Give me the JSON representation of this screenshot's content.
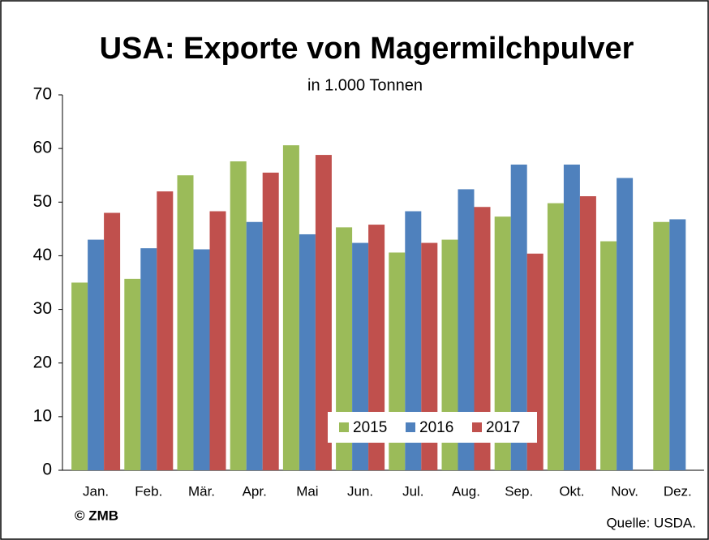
{
  "chart_data": {
    "type": "bar",
    "title": "USA: Exporte von Magermilchpulver",
    "subtitle": "in 1.000 Tonnen",
    "categories": [
      "Jan.",
      "Feb.",
      "Mär.",
      "Apr.",
      "Mai",
      "Jun.",
      "Jul.",
      "Aug.",
      "Sep.",
      "Okt.",
      "Nov.",
      "Dez."
    ],
    "series": [
      {
        "name": "2015",
        "color": "#9bbb59",
        "values": [
          35,
          35.7,
          55,
          57.6,
          60.6,
          45.3,
          40.6,
          43,
          47.3,
          49.8,
          42.7,
          46.3
        ]
      },
      {
        "name": "2016",
        "color": "#4f81bd",
        "values": [
          43,
          41.4,
          41.2,
          46.3,
          44,
          42.4,
          48.3,
          52.4,
          57,
          57,
          54.5,
          46.8
        ]
      },
      {
        "name": "2017",
        "color": "#c0504d",
        "values": [
          48,
          52,
          48.3,
          55.5,
          58.8,
          45.8,
          42.4,
          49.1,
          40.4,
          51.1,
          null,
          null
        ]
      }
    ],
    "ylim": [
      0,
      70
    ],
    "yticks": [
      0,
      10,
      20,
      30,
      40,
      50,
      60,
      70
    ],
    "grid": false,
    "legend": "bottom",
    "copyright": "© ZMB",
    "source": "Quelle: USDA."
  }
}
